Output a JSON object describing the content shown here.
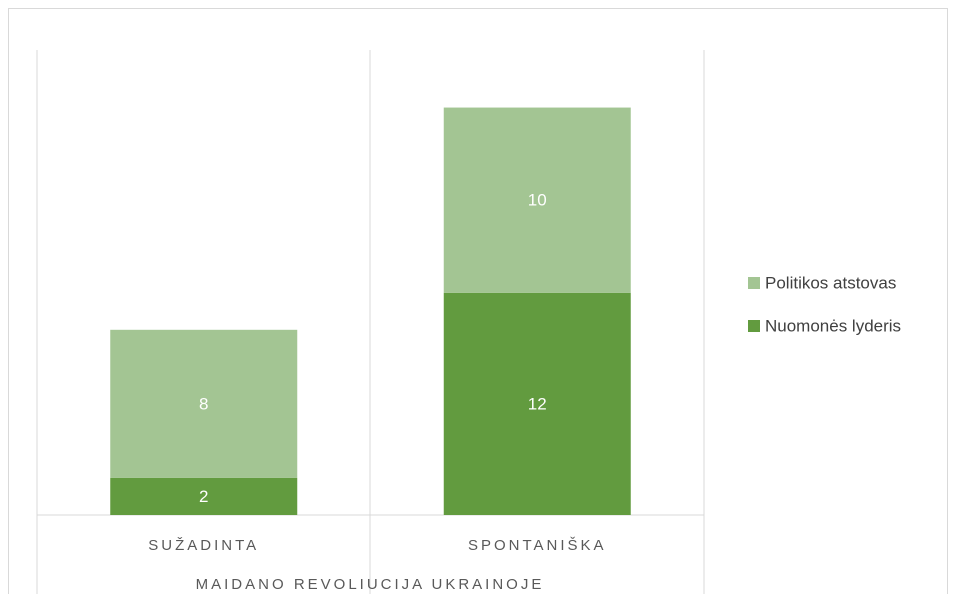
{
  "chart_data": {
    "type": "bar",
    "stacked": true,
    "x_label": "MAIDANO REVOLIUCIJA UKRAINOJE",
    "categories": [
      "SUŽADINTA",
      "SPONTANIŠKA"
    ],
    "series": [
      {
        "name": "Nuomonės lyderis",
        "color": "#629b3f",
        "values": [
          2,
          12
        ]
      },
      {
        "name": "Politikos atstovas",
        "color": "#a3c593",
        "values": [
          8,
          10
        ]
      }
    ],
    "ylim": [
      0,
      25
    ],
    "legend": "right"
  }
}
